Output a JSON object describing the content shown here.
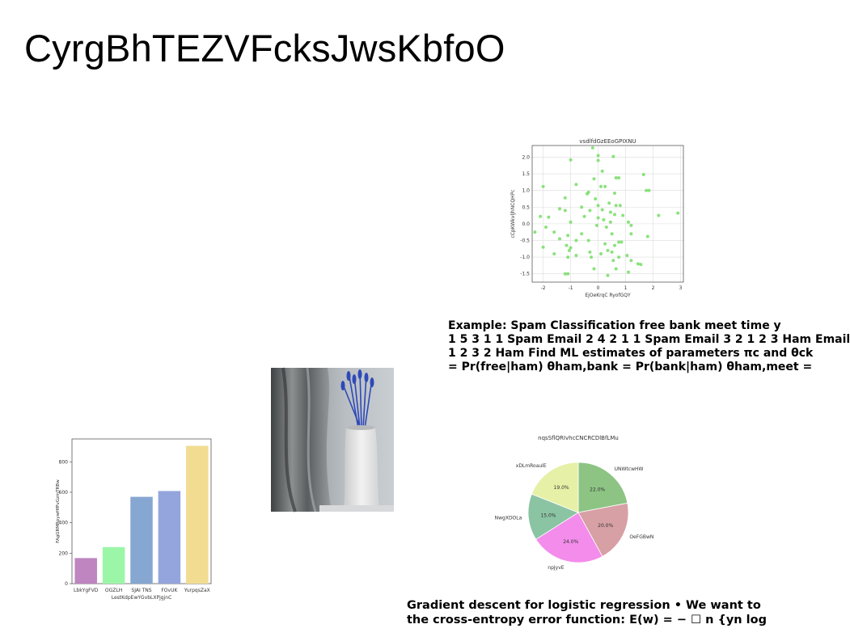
{
  "page": {
    "title": "CyrgBhTEZVFcksJwsKbfoO"
  },
  "text_blocks": {
    "spam": {
      "lines": [
        "Example: Spam Classification free bank meet time y",
        "1 5 3 1 1 Spam Email 2 4 2 1 1 Spam Email 3 2 1 2 3 Ham Email",
        "1 2 3 2 Ham Find ML estimates of parameters πc and θck",
        "= Pr(free|ham) θham,bank = Pr(bank|ham) θham,meet ="
      ]
    },
    "gradient": {
      "lines": [
        "Gradient descent for logistic regression • We want to",
        "the cross-entropy error function: E(w) = − ☐ n {yn log"
      ]
    }
  },
  "chart_data": [
    {
      "id": "scatter",
      "type": "scatter",
      "title": "vsdlfdGzEEoGPIXNU",
      "xlabel": "EjOeKrqC RyofGQY",
      "ylabel": "cCpKWkvlJhNCQHPc",
      "xlim": [
        -2.4,
        3.1
      ],
      "ylim": [
        -1.75,
        2.35
      ],
      "xticks": [
        -2,
        -1,
        0,
        1,
        2,
        3
      ],
      "yticks": [
        -1.5,
        -1.0,
        -0.5,
        0.0,
        0.5,
        1.0,
        1.5,
        2.0
      ],
      "grid": true,
      "color": "#77dd66",
      "points": [
        [
          -0.2,
          2.28
        ],
        [
          0.0,
          2.05
        ],
        [
          0.55,
          2.02
        ],
        [
          -1.0,
          1.92
        ],
        [
          0.0,
          1.9
        ],
        [
          0.15,
          1.58
        ],
        [
          1.65,
          1.48
        ],
        [
          0.65,
          1.38
        ],
        [
          0.75,
          1.38
        ],
        [
          -2.0,
          1.12
        ],
        [
          -0.8,
          1.18
        ],
        [
          0.1,
          1.12
        ],
        [
          0.25,
          1.12
        ],
        [
          1.75,
          1.0
        ],
        [
          -0.35,
          0.95
        ],
        [
          -0.4,
          0.9
        ],
        [
          0.6,
          0.92
        ],
        [
          -1.2,
          0.78
        ],
        [
          -0.1,
          0.75
        ],
        [
          0.0,
          0.55
        ],
        [
          0.4,
          0.62
        ],
        [
          0.65,
          0.55
        ],
        [
          0.8,
          0.55
        ],
        [
          -0.6,
          0.5
        ],
        [
          -1.4,
          0.45
        ],
        [
          -1.2,
          0.4
        ],
        [
          -0.3,
          0.4
        ],
        [
          0.15,
          0.42
        ],
        [
          0.45,
          0.35
        ],
        [
          -2.1,
          0.22
        ],
        [
          -1.8,
          0.2
        ],
        [
          -0.5,
          0.22
        ],
        [
          0.0,
          0.18
        ],
        [
          0.2,
          0.12
        ],
        [
          0.6,
          0.28
        ],
        [
          0.9,
          0.25
        ],
        [
          2.2,
          0.25
        ],
        [
          2.9,
          0.32
        ],
        [
          -1.0,
          0.05
        ],
        [
          0.45,
          0.05
        ],
        [
          1.1,
          0.05
        ],
        [
          1.2,
          -0.05
        ],
        [
          -1.9,
          -0.1
        ],
        [
          -0.05,
          -0.05
        ],
        [
          0.3,
          -0.1
        ],
        [
          -1.6,
          -0.25
        ],
        [
          -0.6,
          -0.3
        ],
        [
          0.5,
          -0.3
        ],
        [
          1.2,
          -0.3
        ],
        [
          -2.3,
          -0.25
        ],
        [
          -1.1,
          -0.35
        ],
        [
          -1.4,
          -0.45
        ],
        [
          -0.8,
          -0.5
        ],
        [
          -0.35,
          -0.5
        ],
        [
          0.75,
          -0.55
        ],
        [
          1.8,
          -0.38
        ],
        [
          -2.0,
          -0.7
        ],
        [
          -1.15,
          -0.65
        ],
        [
          0.25,
          -0.6
        ],
        [
          0.6,
          -0.65
        ],
        [
          0.85,
          -0.55
        ],
        [
          -0.3,
          -0.85
        ],
        [
          0.35,
          -0.8
        ],
        [
          0.5,
          -0.85
        ],
        [
          -1.05,
          -0.8
        ],
        [
          -1.6,
          -0.9
        ],
        [
          -0.8,
          -0.95
        ],
        [
          0.1,
          -0.9
        ],
        [
          0.75,
          -1.0
        ],
        [
          1.05,
          -0.95
        ],
        [
          -0.25,
          -1.0
        ],
        [
          0.55,
          -1.1
        ],
        [
          1.2,
          -1.1
        ],
        [
          -1.1,
          -1.0
        ],
        [
          1.45,
          -1.2
        ],
        [
          1.55,
          -1.22
        ],
        [
          -0.15,
          -1.35
        ],
        [
          0.65,
          -1.35
        ],
        [
          -1.1,
          -1.5
        ],
        [
          -1.2,
          -1.5
        ],
        [
          0.35,
          -1.55
        ],
        [
          1.1,
          -1.45
        ],
        [
          1.85,
          1.0
        ],
        [
          -0.15,
          1.35
        ],
        [
          -1.0,
          -0.72
        ]
      ]
    },
    {
      "id": "bar",
      "type": "bar",
      "title": "",
      "xlabel": "LestKdpEwYGvbLXPjgjnC",
      "ylabel": "FAgGRMRpywHfPvGzmTRBw",
      "categories": [
        "LbkYgFVD",
        "OGZLH",
        "SJAI TNS",
        "FOvUK",
        "YurpqsZaX"
      ],
      "values": [
        168,
        240,
        570,
        608,
        905
      ],
      "colors": [
        "#be85c0",
        "#9cf6a8",
        "#86a7d1",
        "#93a5dc",
        "#f1dc92"
      ],
      "ylim": [
        0,
        950
      ],
      "yticks": [
        0,
        200,
        400,
        600,
        800
      ]
    },
    {
      "id": "pie",
      "type": "pie",
      "title": "nqsSflQRIvhcCNCRCDlBfLMu",
      "slices": [
        {
          "label": "UNWtcwHW",
          "value": 22.0,
          "pct": "22.0%",
          "color": "#8dc484"
        },
        {
          "label": "OeFGBwN",
          "value": 20.0,
          "pct": "20.0%",
          "color": "#d7a0a5"
        },
        {
          "label": "npJyvE",
          "value": 24.0,
          "pct": "24.0%",
          "color": "#f38ceb"
        },
        {
          "label": "NwgXDOLa",
          "value": 15.0,
          "pct": "15.0%",
          "color": "#8bc4a3"
        },
        {
          "label": "xDLmRoaulE",
          "value": 19.0,
          "pct": "19.0%",
          "color": "#e6f0a6"
        }
      ]
    }
  ],
  "image": {
    "alt": "vase with blue flowers beside curtain",
    "vase_color": "#e8e8e8",
    "flower_color": "#2e49b8"
  }
}
